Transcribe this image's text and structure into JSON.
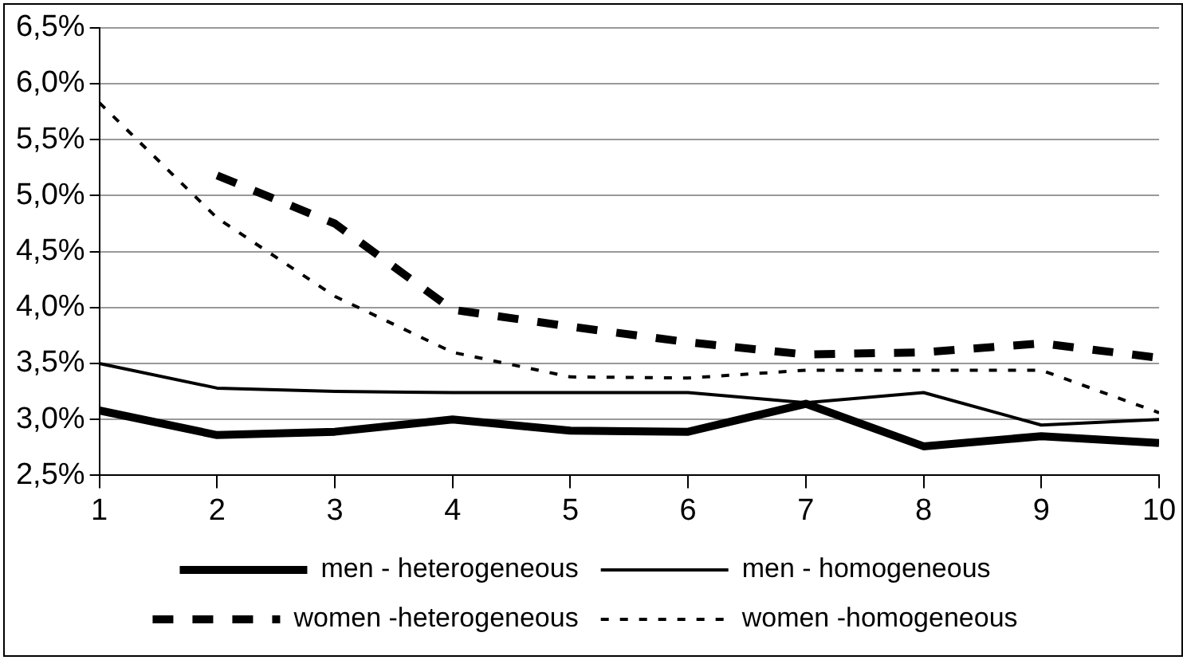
{
  "chart_data": {
    "type": "line",
    "x": [
      1,
      2,
      3,
      4,
      5,
      6,
      7,
      8,
      9,
      10
    ],
    "xlim": [
      1,
      10
    ],
    "xticks": [
      1,
      2,
      3,
      4,
      5,
      6,
      7,
      8,
      9,
      10
    ],
    "ylim": [
      2.5,
      6.5
    ],
    "yticks": [
      {
        "value": 2.5,
        "label": "2,5%"
      },
      {
        "value": 3,
        "label": "3,0%"
      },
      {
        "value": 3.5,
        "label": "3,5%"
      },
      {
        "value": 4,
        "label": "4,0%"
      },
      {
        "value": 4.5,
        "label": "4,5%"
      },
      {
        "value": 5,
        "label": "5,0%"
      },
      {
        "value": 5.5,
        "label": "5,5%"
      },
      {
        "value": 6,
        "label": "6,0%"
      },
      {
        "value": 6.5,
        "label": "6,5%"
      }
    ],
    "grid": "y",
    "legend": "bottom",
    "marker": "none",
    "series": [
      {
        "name": "men - heterogeneous",
        "color": "#000000",
        "line_style": "solid",
        "values": [
          3.08,
          2.86,
          2.89,
          3.0,
          2.9,
          2.89,
          3.14,
          2.76,
          2.85,
          2.79
        ]
      },
      {
        "name": "men - homogeneous",
        "color": "#000000",
        "line_style": "solid",
        "values": [
          3.5,
          3.28,
          3.25,
          3.24,
          3.24,
          3.24,
          3.15,
          3.24,
          2.95,
          3.0
        ]
      },
      {
        "name": "women -heterogeneous",
        "color": "#000000",
        "line_style": "dashed",
        "values": [
          null,
          5.18,
          4.75,
          3.98,
          3.83,
          3.69,
          3.58,
          3.6,
          3.68,
          3.55
        ]
      },
      {
        "name": "women -homogeneous",
        "color": "#000000",
        "line_style": "dotted",
        "values": [
          5.83,
          4.8,
          4.1,
          3.6,
          3.38,
          3.37,
          3.44,
          3.44,
          3.44,
          3.06
        ]
      }
    ]
  }
}
